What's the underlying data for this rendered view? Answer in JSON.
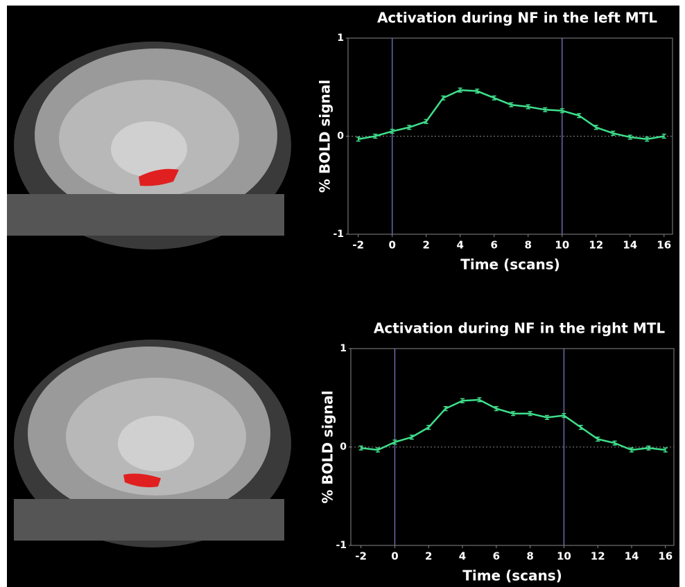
{
  "chart_data": [
    {
      "type": "line",
      "title": "Activation during NF in the left MTL",
      "xlabel": "Time (scans)",
      "ylabel": "% BOLD signal",
      "x": [
        -2,
        -1,
        0,
        1,
        2,
        3,
        4,
        5,
        6,
        7,
        8,
        9,
        10,
        11,
        12,
        13,
        14,
        15,
        16
      ],
      "values": [
        -0.03,
        0.0,
        0.05,
        0.09,
        0.15,
        0.39,
        0.47,
        0.46,
        0.39,
        0.32,
        0.3,
        0.27,
        0.26,
        0.21,
        0.09,
        0.03,
        -0.01,
        -0.03,
        0.0
      ],
      "errors": [
        0.02,
        0.02,
        0.02,
        0.02,
        0.02,
        0.02,
        0.02,
        0.02,
        0.02,
        0.02,
        0.02,
        0.02,
        0.02,
        0.02,
        0.02,
        0.02,
        0.02,
        0.02,
        0.02
      ],
      "color": "#3fe08c",
      "xlim": [
        -2.6,
        16.5
      ],
      "ylim": [
        -1,
        1
      ],
      "xticks": [
        -2,
        0,
        2,
        4,
        6,
        8,
        10,
        12,
        14,
        16
      ],
      "yticks": [
        -1,
        0,
        1
      ],
      "vlines": [
        0,
        10
      ],
      "zero_line": true
    },
    {
      "type": "line",
      "title": "Activation during NF in the right MTL",
      "xlabel": "Time (scans)",
      "ylabel": "% BOLD signal",
      "x": [
        -2,
        -1,
        0,
        1,
        2,
        3,
        4,
        5,
        6,
        7,
        8,
        9,
        10,
        11,
        12,
        13,
        14,
        15,
        16
      ],
      "values": [
        -0.01,
        -0.03,
        0.05,
        0.1,
        0.2,
        0.39,
        0.47,
        0.48,
        0.39,
        0.34,
        0.34,
        0.3,
        0.32,
        0.2,
        0.08,
        0.04,
        -0.03,
        -0.01,
        -0.03
      ],
      "errors": [
        0.02,
        0.02,
        0.02,
        0.02,
        0.02,
        0.02,
        0.02,
        0.02,
        0.02,
        0.02,
        0.02,
        0.02,
        0.02,
        0.02,
        0.02,
        0.02,
        0.02,
        0.02,
        0.02
      ],
      "color": "#3fe08c",
      "xlim": [
        -2.6,
        16.5
      ],
      "ylim": [
        -1,
        1
      ],
      "xticks": [
        -2,
        0,
        2,
        4,
        6,
        8,
        10,
        12,
        14,
        16
      ],
      "yticks": [
        -1,
        0,
        1
      ],
      "vlines": [
        0,
        10
      ],
      "zero_line": true
    }
  ]
}
